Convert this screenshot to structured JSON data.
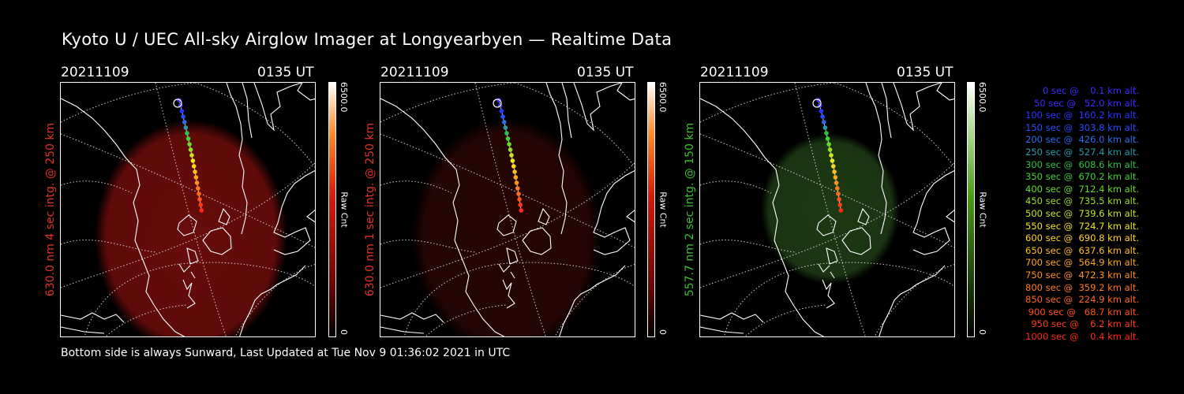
{
  "title": "Kyoto U / UEC All-sky Airglow Imager at Longyearbyen — Realtime Data",
  "footer": "Bottom side is always Sunward, Last Updated at Tue Nov  9 01:36:02 2021 in UTC",
  "panels": [
    {
      "date": "20211109",
      "time": "0135 UT",
      "ylabel": "630.0 nm 4 sec intg. @ 250 km",
      "label_color": "#e0312a",
      "cbar_max": "6500.0",
      "cbar_min": "0",
      "cbar_unit": "Raw Cnt",
      "glow_color": "#7a0e0c",
      "glow_opacity": 0.85
    },
    {
      "date": "20211109",
      "time": "0135 UT",
      "ylabel": "630.0 nm 1 sec intg. @ 250 km",
      "label_color": "#e0312a",
      "cbar_max": "6500.0",
      "cbar_min": "0",
      "cbar_unit": "Raw Cnt",
      "glow_color": "#2a0605",
      "glow_opacity": 0.9
    },
    {
      "date": "20211109",
      "time": "0135 UT",
      "ylabel": "557.7 nm 2 sec intg. @ 150 km",
      "label_color": "#3bbf2e",
      "cbar_max": "6500.0",
      "cbar_min": "0",
      "cbar_unit": "Raw Cnt",
      "glow_color": "#1e3d14",
      "glow_opacity": 0.95
    }
  ],
  "legend": [
    {
      "text": "   0 sec @    0.1 km alt.",
      "color": "#3a2cff"
    },
    {
      "text": "  50 sec @   52.0 km alt.",
      "color": "#3a2cff"
    },
    {
      "text": " 100 sec @  160.2 km alt.",
      "color": "#2a36ff"
    },
    {
      "text": " 150 sec @  303.8 km alt.",
      "color": "#2a4cff"
    },
    {
      "text": " 200 sec @  426.0 km alt.",
      "color": "#2a6cf0"
    },
    {
      "text": " 250 sec @  527.4 km alt.",
      "color": "#2a9aa8"
    },
    {
      "text": " 300 sec @  608.6 km alt.",
      "color": "#2ec04a"
    },
    {
      "text": " 350 sec @  670.2 km alt.",
      "color": "#3ed232"
    },
    {
      "text": " 400 sec @  712.4 km alt.",
      "color": "#6ad828"
    },
    {
      "text": " 450 sec @  735.5 km alt.",
      "color": "#9ade22"
    },
    {
      "text": " 500 sec @  739.6 km alt.",
      "color": "#c8e41e"
    },
    {
      "text": " 550 sec @  724.7 km alt.",
      "color": "#f0e81a"
    },
    {
      "text": " 600 sec @  690.8 km alt.",
      "color": "#ffd81a"
    },
    {
      "text": " 650 sec @  637.6 km alt.",
      "color": "#ffbe1a"
    },
    {
      "text": " 700 sec @  564.9 km alt.",
      "color": "#ffa61a"
    },
    {
      "text": " 750 sec @  472.3 km alt.",
      "color": "#ff901a"
    },
    {
      "text": " 800 sec @  359.2 km alt.",
      "color": "#ff7a1a"
    },
    {
      "text": " 850 sec @  224.9 km alt.",
      "color": "#ff661a"
    },
    {
      "text": " 900 sec @   68.7 km alt.",
      "color": "#ff5018"
    },
    {
      "text": " 950 sec @    6.2 km alt.",
      "color": "#ff3c16"
    },
    {
      "text": "1000 sec @    0.4 km alt.",
      "color": "#ff2a14"
    }
  ],
  "track_colors": [
    "#ff2a14",
    "#ff3c16",
    "#ff5018",
    "#ff661a",
    "#ff7a1a",
    "#ff901a",
    "#ffa61a",
    "#ffbe1a",
    "#ffd81a",
    "#f0e81a",
    "#c8e41e",
    "#9ade22",
    "#6ad828",
    "#3ed232",
    "#2ec04a",
    "#2a9aa8",
    "#2a6cf0",
    "#2a4cff",
    "#2a36ff",
    "#3a2cff",
    "#3a2cff"
  ]
}
